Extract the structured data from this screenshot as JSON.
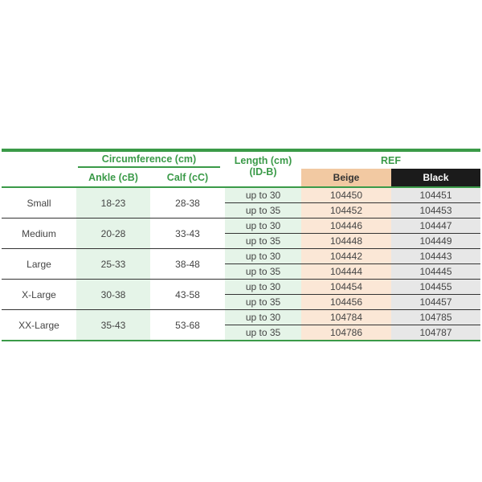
{
  "header": {
    "circumference": "Circumference (cm)",
    "ankle": "Ankle (cB)",
    "calf": "Calf (cC)",
    "length": "Length (cm)",
    "length_sub": "(ID-B)",
    "ref": "REF",
    "beige": "Beige",
    "black": "Black"
  },
  "colors": {
    "green": "#3a9a48",
    "beige": "#f2c9a2",
    "black": "#1b1b1b"
  },
  "rows": [
    {
      "size": "Small",
      "ankle": "18-23",
      "calf": "28-38",
      "sub": [
        {
          "length": "up to 30",
          "beige": "104450",
          "black": "104451"
        },
        {
          "length": "up to 35",
          "beige": "104452",
          "black": "104453"
        }
      ]
    },
    {
      "size": "Medium",
      "ankle": "20-28",
      "calf": "33-43",
      "sub": [
        {
          "length": "up to 30",
          "beige": "104446",
          "black": "104447"
        },
        {
          "length": "up to 35",
          "beige": "104448",
          "black": "104449"
        }
      ]
    },
    {
      "size": "Large",
      "ankle": "25-33",
      "calf": "38-48",
      "sub": [
        {
          "length": "up to 30",
          "beige": "104442",
          "black": "104443"
        },
        {
          "length": "up to 35",
          "beige": "104444",
          "black": "104445"
        }
      ]
    },
    {
      "size": "X-Large",
      "ankle": "30-38",
      "calf": "43-58",
      "sub": [
        {
          "length": "up to 30",
          "beige": "104454",
          "black": "104455"
        },
        {
          "length": "up to 35",
          "beige": "104456",
          "black": "104457"
        }
      ]
    },
    {
      "size": "XX-Large",
      "ankle": "35-43",
      "calf": "53-68",
      "sub": [
        {
          "length": "up to 30",
          "beige": "104784",
          "black": "104785"
        },
        {
          "length": "up to 35",
          "beige": "104786",
          "black": "104787"
        }
      ]
    }
  ]
}
